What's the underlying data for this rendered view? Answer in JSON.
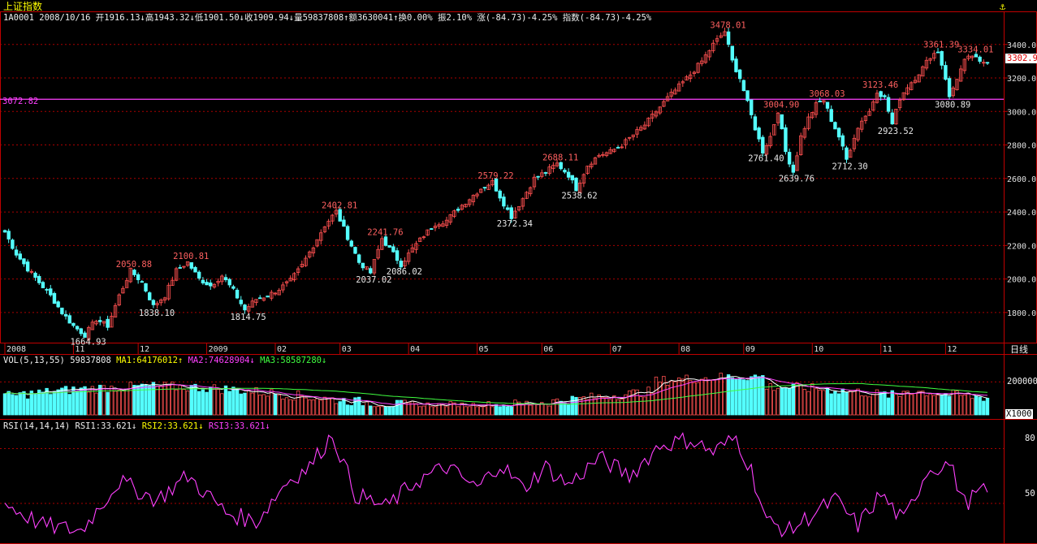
{
  "title": "上证指数",
  "header_line": "1A0001 2008/10/16 开1916.13↓高1943.32↓低1901.50↓收1909.94↓量59837808↑额3630041↑换0.00% 振2.10% 涨(-84.73)-4.25% 指数(-84.73)-4.25%",
  "corner_icon": "lock-arrow-icon",
  "period_label": "日线",
  "current_price": "3302.9",
  "hline_label": "3072.82",
  "vol_line": {
    "label": "VOL(5,13,55)",
    "vol": "59837808",
    "ma1": "MA1:64176012↑",
    "ma2": "MA2:74628904↓",
    "ma3": "MA3:58587280↓"
  },
  "rsi_line": {
    "label": "RSI(14,14,14)",
    "rsi1": "RSI1:33.621↓",
    "rsi2": "RSI2:33.621↓",
    "rsi3": "RSI3:33.621↓"
  },
  "vol_scale": {
    "top": "200000",
    "unit": "X1000"
  },
  "rsi_scale": {
    "top": "80",
    "bottom": "50"
  },
  "colors": {
    "up": "#ff5050",
    "down": "#54ffff",
    "grid": "#aa0000",
    "ma1": "#ffffff",
    "ma2": "#ff40ff",
    "ma3": "#40ff40",
    "rsi": "#ff40ff",
    "hline": "#ff40ff"
  },
  "chart_data": {
    "type": "candlestick",
    "x_ticks": [
      "2008",
      "11",
      "12",
      "2009",
      "02",
      "03",
      "04",
      "05",
      "06",
      "07",
      "08",
      "09",
      "10",
      "11",
      "12"
    ],
    "y_ticks": [
      "3400.0",
      "3200.0",
      "3000.0",
      "2800.0",
      "2600.0",
      "2400.0",
      "2200.0",
      "2000.0",
      "1800.0"
    ],
    "ylim": [
      1620,
      3520
    ],
    "reference_line": 3072.82,
    "price_path": [
      [
        0,
        2280
      ],
      [
        3,
        2150
      ],
      [
        6,
        2060
      ],
      [
        9,
        1980
      ],
      [
        12,
        1900
      ],
      [
        15,
        1800
      ],
      [
        18,
        1720
      ],
      [
        21,
        1665
      ],
      [
        24,
        1760
      ],
      [
        27,
        1720
      ],
      [
        30,
        1900
      ],
      [
        33,
        2050
      ],
      [
        36,
        1980
      ],
      [
        39,
        1838
      ],
      [
        42,
        1900
      ],
      [
        45,
        2050
      ],
      [
        48,
        2100
      ],
      [
        51,
        2000
      ],
      [
        54,
        1960
      ],
      [
        57,
        2020
      ],
      [
        60,
        1930
      ],
      [
        63,
        1815
      ],
      [
        66,
        1880
      ],
      [
        69,
        1900
      ],
      [
        72,
        1940
      ],
      [
        75,
        1990
      ],
      [
        78,
        2080
      ],
      [
        81,
        2200
      ],
      [
        84,
        2320
      ],
      [
        87,
        2403
      ],
      [
        90,
        2250
      ],
      [
        93,
        2100
      ],
      [
        96,
        2037
      ],
      [
        99,
        2242
      ],
      [
        102,
        2150
      ],
      [
        104,
        2086
      ],
      [
        107,
        2180
      ],
      [
        110,
        2260
      ],
      [
        113,
        2330
      ],
      [
        116,
        2350
      ],
      [
        119,
        2420
      ],
      [
        122,
        2480
      ],
      [
        125,
        2540
      ],
      [
        128,
        2579
      ],
      [
        131,
        2450
      ],
      [
        133,
        2372
      ],
      [
        136,
        2480
      ],
      [
        139,
        2600
      ],
      [
        142,
        2640
      ],
      [
        145,
        2688
      ],
      [
        148,
        2620
      ],
      [
        150,
        2539
      ],
      [
        153,
        2680
      ],
      [
        156,
        2740
      ],
      [
        159,
        2760
      ],
      [
        162,
        2800
      ],
      [
        165,
        2860
      ],
      [
        168,
        2920
      ],
      [
        171,
        3000
      ],
      [
        174,
        3080
      ],
      [
        177,
        3150
      ],
      [
        180,
        3220
      ],
      [
        183,
        3300
      ],
      [
        186,
        3400
      ],
      [
        189,
        3478
      ],
      [
        191,
        3300
      ],
      [
        193,
        3200
      ],
      [
        195,
        3050
      ],
      [
        197,
        2900
      ],
      [
        199,
        2761
      ],
      [
        201,
        2850
      ],
      [
        203,
        3005
      ],
      [
        205,
        2760
      ],
      [
        207,
        2640
      ],
      [
        209,
        2850
      ],
      [
        211,
        2960
      ],
      [
        213,
        3040
      ],
      [
        215,
        3068
      ],
      [
        217,
        2950
      ],
      [
        219,
        2850
      ],
      [
        221,
        2712
      ],
      [
        223,
        2850
      ],
      [
        225,
        2950
      ],
      [
        227,
        3000
      ],
      [
        229,
        3123
      ],
      [
        231,
        3080
      ],
      [
        233,
        2924
      ],
      [
        235,
        3080
      ],
      [
        237,
        3150
      ],
      [
        239,
        3200
      ],
      [
        241,
        3260
      ],
      [
        243,
        3330
      ],
      [
        245,
        3361
      ],
      [
        247,
        3200
      ],
      [
        248,
        3081
      ],
      [
        250,
        3200
      ],
      [
        252,
        3300
      ],
      [
        254,
        3334
      ],
      [
        256,
        3290
      ],
      [
        258,
        3302
      ]
    ],
    "annotations": [
      {
        "i": 21,
        "v": "1664.93",
        "pos": "low"
      },
      {
        "i": 33,
        "v": "2050.88",
        "pos": "high"
      },
      {
        "i": 39,
        "v": "1838.10",
        "pos": "low"
      },
      {
        "i": 48,
        "v": "2100.81",
        "pos": "high"
      },
      {
        "i": 63,
        "v": "1814.75",
        "pos": "low"
      },
      {
        "i": 87,
        "v": "2402.81",
        "pos": "high"
      },
      {
        "i": 96,
        "v": "2037.02",
        "pos": "low"
      },
      {
        "i": 99,
        "v": "2241.76",
        "pos": "high"
      },
      {
        "i": 104,
        "v": "2086.02",
        "pos": "low"
      },
      {
        "i": 128,
        "v": "2579.22",
        "pos": "high"
      },
      {
        "i": 133,
        "v": "2372.34",
        "pos": "low"
      },
      {
        "i": 145,
        "v": "2688.11",
        "pos": "high"
      },
      {
        "i": 150,
        "v": "2538.62",
        "pos": "low"
      },
      {
        "i": 189,
        "v": "3478.01",
        "pos": "high"
      },
      {
        "i": 199,
        "v": "2761.40",
        "pos": "low"
      },
      {
        "i": 203,
        "v": "3004.90",
        "pos": "high"
      },
      {
        "i": 207,
        "v": "2639.76",
        "pos": "low"
      },
      {
        "i": 215,
        "v": "3068.03",
        "pos": "high"
      },
      {
        "i": 221,
        "v": "2712.30",
        "pos": "low"
      },
      {
        "i": 229,
        "v": "3123.46",
        "pos": "high"
      },
      {
        "i": 233,
        "v": "2923.52",
        "pos": "low"
      },
      {
        "i": 245,
        "v": "3361.39",
        "pos": "high"
      },
      {
        "i": 248,
        "v": "3080.89",
        "pos": "low"
      },
      {
        "i": 254,
        "v": "3334.01",
        "pos": "high"
      }
    ],
    "vol_ylim": [
      0,
      300000
    ],
    "rsi_ylim": [
      30,
      90
    ],
    "rsi_path": [
      [
        0,
        50
      ],
      [
        10,
        38
      ],
      [
        20,
        35
      ],
      [
        30,
        62
      ],
      [
        40,
        52
      ],
      [
        48,
        65
      ],
      [
        58,
        45
      ],
      [
        66,
        40
      ],
      [
        74,
        62
      ],
      [
        80,
        70
      ],
      [
        86,
        88
      ],
      [
        92,
        55
      ],
      [
        100,
        48
      ],
      [
        108,
        62
      ],
      [
        116,
        70
      ],
      [
        124,
        58
      ],
      [
        130,
        72
      ],
      [
        136,
        58
      ],
      [
        142,
        70
      ],
      [
        148,
        60
      ],
      [
        156,
        75
      ],
      [
        164,
        65
      ],
      [
        172,
        82
      ],
      [
        180,
        85
      ],
      [
        186,
        78
      ],
      [
        192,
        86
      ],
      [
        196,
        68
      ],
      [
        200,
        40
      ],
      [
        206,
        35
      ],
      [
        212,
        44
      ],
      [
        218,
        52
      ],
      [
        224,
        38
      ],
      [
        230,
        55
      ],
      [
        236,
        40
      ],
      [
        242,
        68
      ],
      [
        248,
        72
      ],
      [
        252,
        50
      ],
      [
        256,
        56
      ],
      [
        258,
        56
      ]
    ]
  }
}
